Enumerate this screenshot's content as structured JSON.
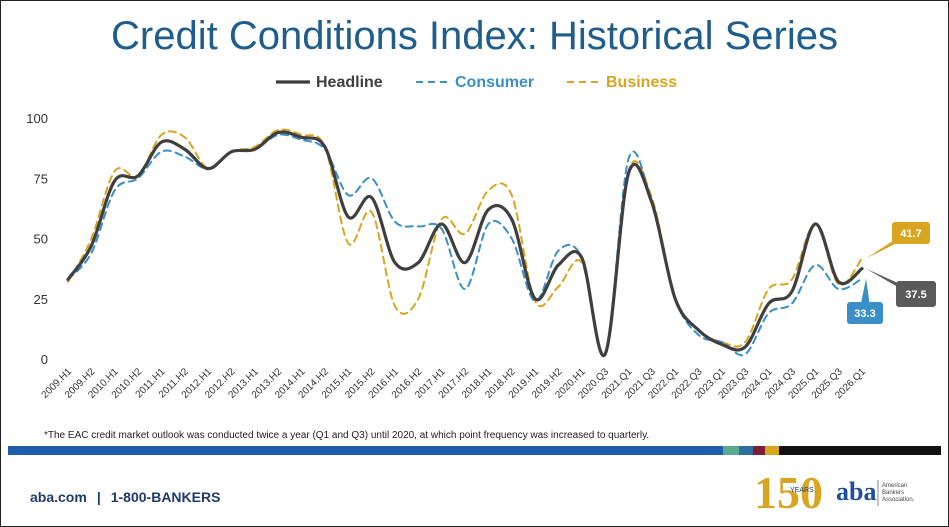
{
  "title": "Credit Conditions Index: Historical Series",
  "footnote": "*The EAC credit market outlook was conducted twice a year (Q1 and Q3) until 2020, at which point frequency was increased to quarterly.",
  "footer": {
    "website": "aba.com",
    "separator": "|",
    "phone": "1-800-BANKERS"
  },
  "logos": {
    "anniversary_number": "150",
    "anniversary_text": "YEARS",
    "aba_monogram": "aba",
    "aba_name_lines": [
      "American",
      "Bankers",
      "Association."
    ]
  },
  "colors": {
    "title": "#1f5d8c",
    "headline": "#3f3f3f",
    "consumer": "#3a8fc8",
    "business": "#d9a520",
    "band_blue": "#1f5ea8",
    "band_black": "#111111"
  },
  "chart_data": {
    "type": "line",
    "legend_position": "top",
    "grid": false,
    "ylim": [
      0,
      100
    ],
    "yticks": [
      0,
      25,
      50,
      75,
      100
    ],
    "x": [
      "2009.H1",
      "2009.H2",
      "2010.H1",
      "2010.H2",
      "2011.H1",
      "2011.H2",
      "2012.H1",
      "2012.H2",
      "2013.H1",
      "2013.H2",
      "2014.H1",
      "2014.H2",
      "2015.H1",
      "2015.H2",
      "2016.H1",
      "2016.H2",
      "2017.H1",
      "2017.H2",
      "2018.H1",
      "2018.H2",
      "2019.H1",
      "2019.H2",
      "2020.H1",
      "2020.Q3",
      "2021.Q1",
      "2021.Q3",
      "2022.Q1",
      "2022.Q3",
      "2023.Q1",
      "2023.Q3",
      "2024.Q1",
      "2024.Q3",
      "2025.Q1",
      "2025.Q3",
      "2026.Q1"
    ],
    "series": [
      {
        "name": "Headline",
        "style": "solid",
        "values": [
          33,
          47,
          74,
          76,
          90,
          87,
          79,
          86,
          87,
          94,
          92,
          88,
          59,
          67,
          40,
          40,
          56,
          40,
          62,
          58,
          25,
          39,
          42,
          2,
          77,
          65,
          25,
          12,
          6,
          5,
          23,
          28,
          56,
          32,
          37.5
        ]
      },
      {
        "name": "Consumer",
        "style": "dashed",
        "values": [
          33,
          44,
          70,
          75,
          86,
          84,
          79,
          86,
          87,
          93,
          91,
          87,
          68,
          75,
          57,
          55,
          54,
          29,
          56,
          50,
          24,
          45,
          42,
          2,
          83,
          65,
          25,
          10,
          7,
          2,
          19,
          23,
          39,
          29,
          33.3
        ]
      },
      {
        "name": "Business",
        "style": "dashed",
        "values": [
          32,
          50,
          78,
          76,
          93,
          92,
          79,
          86,
          88,
          95,
          93,
          88,
          48,
          61,
          22,
          25,
          58,
          52,
          70,
          68,
          24,
          30,
          40,
          2,
          78,
          67,
          25,
          12,
          7,
          7,
          29,
          33,
          56,
          31,
          41.7
        ]
      }
    ],
    "end_labels": [
      {
        "series": "Business",
        "text": "41.7"
      },
      {
        "series": "Headline",
        "text": "37.5"
      },
      {
        "series": "Consumer",
        "text": "33.3"
      }
    ]
  }
}
